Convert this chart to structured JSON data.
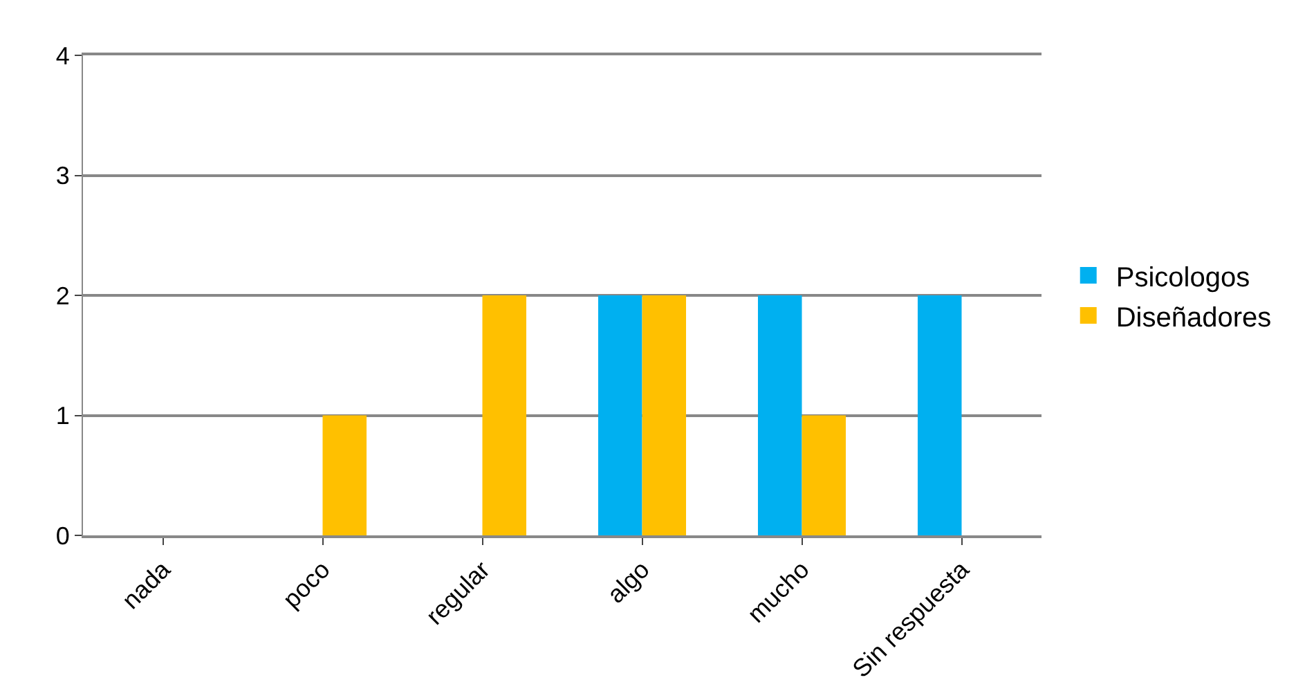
{
  "chart_data": {
    "type": "bar",
    "categories": [
      "nada",
      "poco",
      "regular",
      "algo",
      "mucho",
      "Sin respuesta"
    ],
    "series": [
      {
        "name": "Psicologos",
        "color": "#00b0f0",
        "values": [
          0,
          0,
          0,
          2,
          2,
          2
        ]
      },
      {
        "name": "Diseñadores",
        "color": "#ffc000",
        "values": [
          0,
          1,
          2,
          2,
          1,
          0
        ]
      }
    ],
    "ylim": [
      0,
      4
    ],
    "yticks": [
      0,
      1,
      2,
      3,
      4
    ],
    "grid": "y",
    "legend": "right"
  }
}
